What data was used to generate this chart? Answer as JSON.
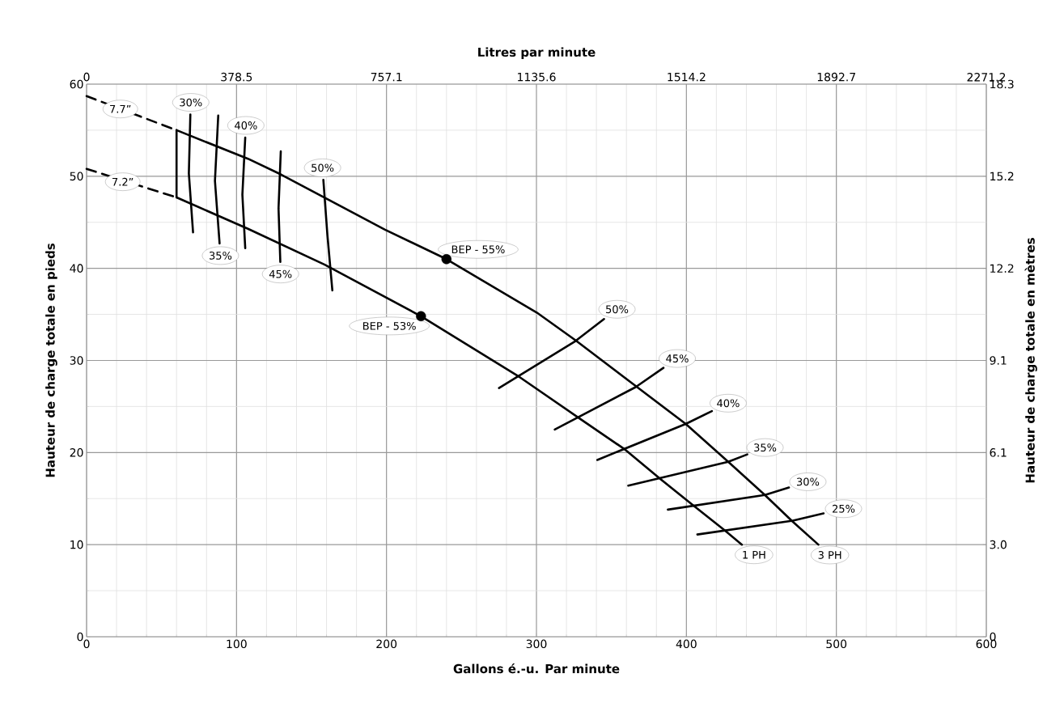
{
  "chart_data": {
    "type": "line",
    "xlabel": "Gallons é.-u. Par minute",
    "x2label": "Litres par minute",
    "ylabel": "Hauteur de charge totale en pieds",
    "y2label": "Hauteur de charge totale en mètres",
    "xlim": [
      0,
      600
    ],
    "xticks": [
      0,
      100,
      200,
      300,
      400,
      500,
      600
    ],
    "ylim": [
      0,
      60
    ],
    "yticks": [
      0,
      10,
      20,
      30,
      40,
      50,
      60
    ],
    "x2lim": [
      0,
      2271.2
    ],
    "x2ticks": [
      0,
      378.5,
      757.1,
      1135.6,
      1514.2,
      1892.7,
      2271.2
    ],
    "y2lim": [
      0,
      18.288
    ],
    "y2ticks": [
      0,
      {
        "value": 3.048,
        "label": "3.0"
      },
      {
        "value": 6.096,
        "label": "6.1"
      },
      {
        "value": 9.144,
        "label": "9.1"
      },
      {
        "value": 12.192,
        "label": "12.2"
      },
      {
        "value": 15.24,
        "label": "15.2"
      },
      {
        "value": 18.288,
        "label": "18.3"
      }
    ],
    "grid": true,
    "marker": "none",
    "line_style": "solid",
    "series": [
      {
        "color": "#000000",
        "x": [
          60,
          107.6,
          129.5,
          199,
          240,
          300.2,
          326,
          367.2,
          399.6,
          427.9,
          452.3,
          470.9,
          488
        ],
        "values": [
          55,
          51.9,
          50.2,
          44.2,
          41,
          35.2,
          32.2,
          27.1,
          23.1,
          19,
          15.4,
          12.5,
          10
        ]
      },
      {
        "color": "#000000",
        "x": [
          60,
          107.6,
          158.8,
          223,
          288.7,
          327.9,
          359.3,
          382.8,
          404.3,
          425.9,
          437
        ],
        "values": [
          47.7,
          44.3,
          40.4,
          34.8,
          28.2,
          23.8,
          20.3,
          17.1,
          14.3,
          11.5,
          10
        ]
      },
      {
        "color": "#000000",
        "line_style": "dashed",
        "x": [
          0,
          60
        ],
        "values": [
          58.7,
          55
        ]
      },
      {
        "color": "#000000",
        "line_style": "dashed",
        "x": [
          0,
          60
        ],
        "values": [
          50.8,
          47.7
        ]
      },
      {
        "color": "#000000",
        "x": [
          60,
          60
        ],
        "values": [
          47.7,
          55
        ]
      },
      {
        "color": "#000000",
        "x": [
          69.2,
          68.2,
          71
        ],
        "values": [
          56.7,
          50.3,
          43.9
        ]
      },
      {
        "color": "#000000",
        "x": [
          87.8,
          85.6,
          88.7
        ],
        "values": [
          56.6,
          49.5,
          42.7
        ]
      },
      {
        "color": "#000000",
        "x": [
          105.8,
          103.9,
          105.8
        ],
        "values": [
          54.2,
          48,
          42.2
        ]
      },
      {
        "color": "#000000",
        "x": [
          129.5,
          128,
          129.2
        ],
        "values": [
          52.7,
          46.5,
          40.7
        ]
      },
      {
        "color": "#000000",
        "x": [
          157.9,
          160.6,
          163.9
        ],
        "values": [
          49.6,
          43.6,
          37.6
        ]
      },
      {
        "color": "#000000",
        "x": [
          275,
          326,
          345.1
        ],
        "values": [
          27,
          32.1,
          34.5
        ]
      },
      {
        "color": "#000000",
        "x": [
          312.2,
          366.1,
          384.7
        ],
        "values": [
          22.5,
          27.1,
          29.2
        ]
      },
      {
        "color": "#000000",
        "x": [
          340.6,
          399.5,
          417
        ],
        "values": [
          19.2,
          23.1,
          24.5
        ]
      },
      {
        "color": "#000000",
        "x": [
          361.2,
          427.9,
          440.6
        ],
        "values": [
          16.4,
          19,
          19.8
        ]
      },
      {
        "color": "#000000",
        "x": [
          387.6,
          452.4,
          468.4
        ],
        "values": [
          13.8,
          15.4,
          16.2
        ]
      },
      {
        "color": "#000000",
        "x": [
          407.3,
          471,
          491.5
        ],
        "values": [
          11.1,
          12.6,
          13.4
        ]
      },
      {
        "type": "scatter",
        "marker": "circle",
        "color": "#000000",
        "x": [
          240,
          223
        ],
        "values": [
          41,
          34.8
        ]
      }
    ],
    "annotations": [
      {
        "text": "7.7”",
        "x": 22.5,
        "y": 57.3
      },
      {
        "text": "7.2”",
        "x": 24.1,
        "y": 49.4
      },
      {
        "text": "30%",
        "x": 69.2,
        "y": 56.7
      },
      {
        "text": "40%",
        "x": 105.8,
        "y": 54.2
      },
      {
        "text": "50%",
        "x": 157.9,
        "y": 49.6
      },
      {
        "text": "35%",
        "x": 88.7,
        "y": 42.7
      },
      {
        "text": "45%",
        "x": 129.2,
        "y": 40.7
      },
      {
        "text": "BEP - 55%",
        "x": 240,
        "y": 41
      },
      {
        "text": "BEP - 53%",
        "x": 223,
        "y": 34.8
      },
      {
        "text": "50%",
        "x": 345.1,
        "y": 34.5
      },
      {
        "text": "45%",
        "x": 384.7,
        "y": 29.2
      },
      {
        "text": "40%",
        "x": 417,
        "y": 24.5
      },
      {
        "text": "35%",
        "x": 440.6,
        "y": 19.8
      },
      {
        "text": "30%",
        "x": 468.4,
        "y": 16.2
      },
      {
        "text": "25%",
        "x": 491.5,
        "y": 13.4
      },
      {
        "text": "1 PH",
        "x": 437,
        "y": 10
      },
      {
        "text": "3 PH",
        "x": 488,
        "y": 10
      }
    ]
  }
}
